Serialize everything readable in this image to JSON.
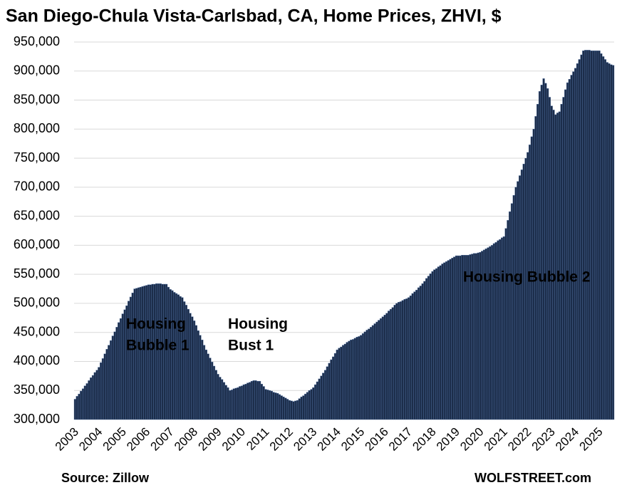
{
  "chart_data": {
    "type": "bar",
    "title": "San Diego-Chula Vista-Carlsbad, CA, Home Prices, ZHVI, $",
    "source": "Source: Zillow",
    "credit": "WOLFSTREET.com",
    "annotations": [
      {
        "lines": [
          "Housing",
          "Bubble 1"
        ],
        "color": "#ffffff"
      },
      {
        "lines": [
          "Housing",
          "Bust 1"
        ],
        "color": "#ff0000"
      },
      {
        "lines": [
          "Housing Bubble 2"
        ],
        "color": "#ffffff"
      }
    ],
    "color": "#1c2d4a",
    "grid": true,
    "ylim": [
      300000,
      950000
    ],
    "yticks": [
      {
        "value": 300000,
        "label": "300,000"
      },
      {
        "value": 350000,
        "label": "350,000"
      },
      {
        "value": 400000,
        "label": "400,000"
      },
      {
        "value": 450000,
        "label": "450,000"
      },
      {
        "value": 500000,
        "label": "500,000"
      },
      {
        "value": 550000,
        "label": "550,000"
      },
      {
        "value": 600000,
        "label": "600,000"
      },
      {
        "value": 650000,
        "label": "650,000"
      },
      {
        "value": 700000,
        "label": "700,000"
      },
      {
        "value": 750000,
        "label": "750,000"
      },
      {
        "value": 800000,
        "label": "800,000"
      },
      {
        "value": 850000,
        "label": "850,000"
      },
      {
        "value": 900000,
        "label": "900,000"
      },
      {
        "value": 950000,
        "label": "950,000"
      }
    ],
    "categories": [
      "2003",
      null,
      null,
      null,
      null,
      null,
      null,
      null,
      null,
      null,
      null,
      null,
      "2004",
      null,
      null,
      null,
      null,
      null,
      null,
      null,
      null,
      null,
      null,
      null,
      "2005",
      null,
      null,
      null,
      null,
      null,
      null,
      null,
      null,
      null,
      null,
      null,
      "2006",
      null,
      null,
      null,
      null,
      null,
      null,
      null,
      null,
      null,
      null,
      null,
      "2007",
      null,
      null,
      null,
      null,
      null,
      null,
      null,
      null,
      null,
      null,
      null,
      "2008",
      null,
      null,
      null,
      null,
      null,
      null,
      null,
      null,
      null,
      null,
      null,
      "2009",
      null,
      null,
      null,
      null,
      null,
      null,
      null,
      null,
      null,
      null,
      null,
      "2010",
      null,
      null,
      null,
      null,
      null,
      null,
      null,
      null,
      null,
      null,
      null,
      "2011",
      null,
      null,
      null,
      null,
      null,
      null,
      null,
      null,
      null,
      null,
      null,
      "2012",
      null,
      null,
      null,
      null,
      null,
      null,
      null,
      null,
      null,
      null,
      null,
      "2013",
      null,
      null,
      null,
      null,
      null,
      null,
      null,
      null,
      null,
      null,
      null,
      "2014",
      null,
      null,
      null,
      null,
      null,
      null,
      null,
      null,
      null,
      null,
      null,
      "2015",
      null,
      null,
      null,
      null,
      null,
      null,
      null,
      null,
      null,
      null,
      null,
      "2016",
      null,
      null,
      null,
      null,
      null,
      null,
      null,
      null,
      null,
      null,
      null,
      "2017",
      null,
      null,
      null,
      null,
      null,
      null,
      null,
      null,
      null,
      null,
      null,
      "2018",
      null,
      null,
      null,
      null,
      null,
      null,
      null,
      null,
      null,
      null,
      null,
      "2019",
      null,
      null,
      null,
      null,
      null,
      null,
      null,
      null,
      null,
      null,
      null,
      "2020",
      null,
      null,
      null,
      null,
      null,
      null,
      null,
      null,
      null,
      null,
      null,
      "2021",
      null,
      null,
      null,
      null,
      null,
      null,
      null,
      null,
      null,
      null,
      null,
      "2022",
      null,
      null,
      null,
      null,
      null,
      null,
      null,
      null,
      null,
      null,
      null,
      "2023",
      null,
      null,
      null,
      null,
      null,
      null,
      null,
      null,
      null,
      null,
      null,
      "2024",
      null,
      null,
      null,
      null,
      null,
      null,
      null,
      null,
      null,
      null,
      null,
      "2025",
      null,
      null,
      null,
      null,
      null,
      null,
      null
    ],
    "values": [
      335000,
      340000,
      344000,
      349000,
      353000,
      358000,
      362000,
      367000,
      372000,
      376000,
      381000,
      385000,
      390000,
      398000,
      405000,
      413000,
      421000,
      428000,
      436000,
      444000,
      451000,
      459000,
      467000,
      474000,
      482000,
      489000,
      496000,
      504000,
      511000,
      518000,
      525000,
      526000,
      527000,
      528000,
      529000,
      530000,
      531000,
      532000,
      532000,
      533000,
      533000,
      534000,
      534000,
      534000,
      533000,
      533000,
      533000,
      528000,
      524000,
      522000,
      519000,
      517000,
      515000,
      512000,
      510000,
      503000,
      497000,
      490000,
      483000,
      477000,
      470000,
      462000,
      453000,
      445000,
      437000,
      428000,
      420000,
      413000,
      406000,
      399000,
      392000,
      385000,
      378000,
      373000,
      369000,
      364000,
      359000,
      355000,
      350000,
      351000,
      353000,
      354000,
      355000,
      357000,
      358000,
      360000,
      361000,
      363000,
      364000,
      366000,
      367000,
      367000,
      366000,
      366000,
      361000,
      357000,
      352000,
      351000,
      350000,
      349000,
      347000,
      346000,
      345000,
      343000,
      341000,
      339000,
      337000,
      335000,
      333000,
      332000,
      331000,
      332000,
      333000,
      336000,
      339000,
      341000,
      344000,
      347000,
      350000,
      352000,
      355000,
      360000,
      365000,
      370000,
      375000,
      380000,
      385000,
      391000,
      397000,
      403000,
      408000,
      414000,
      420000,
      423000,
      425000,
      428000,
      430000,
      433000,
      435000,
      437000,
      438000,
      440000,
      442000,
      443000,
      445000,
      448000,
      451000,
      454000,
      456000,
      459000,
      462000,
      465000,
      468000,
      471000,
      474000,
      477000,
      480000,
      483000,
      487000,
      490000,
      493000,
      497000,
      500000,
      502000,
      503000,
      505000,
      507000,
      508000,
      510000,
      513000,
      517000,
      520000,
      523000,
      527000,
      530000,
      534000,
      538000,
      543000,
      547000,
      551000,
      555000,
      558000,
      560000,
      563000,
      565000,
      568000,
      570000,
      572000,
      574000,
      576000,
      578000,
      580000,
      582000,
      582000,
      582000,
      583000,
      583000,
      583000,
      583000,
      584000,
      585000,
      586000,
      586000,
      587000,
      588000,
      590000,
      592000,
      594000,
      596000,
      598000,
      600000,
      603000,
      605000,
      608000,
      610000,
      613000,
      615000,
      629000,
      643000,
      658000,
      672000,
      686000,
      700000,
      710000,
      720000,
      730000,
      740000,
      750000,
      760000,
      773000,
      787000,
      800000,
      822000,
      843000,
      865000,
      876000,
      887000,
      879000,
      870000,
      855000,
      840000,
      833000,
      825000,
      828000,
      830000,
      843000,
      855000,
      868000,
      880000,
      886000,
      893000,
      899000,
      905000,
      913000,
      920000,
      928000,
      935000,
      936000,
      936000,
      936000,
      935000,
      935000,
      935000,
      935000,
      935000,
      930000,
      925000,
      920000,
      915000,
      913000,
      911000,
      910000
    ]
  }
}
